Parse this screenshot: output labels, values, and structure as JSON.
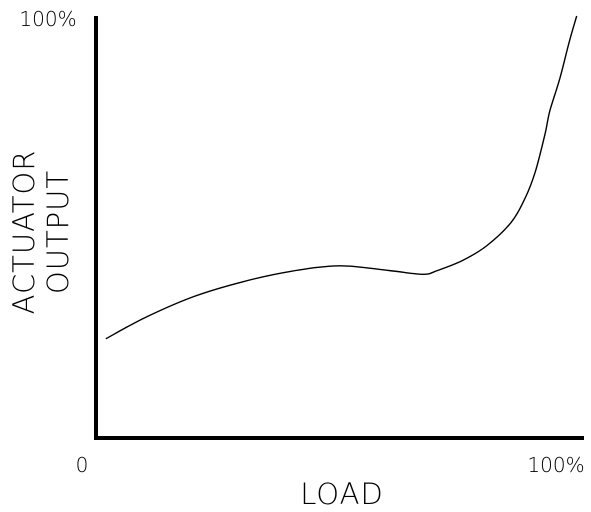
{
  "chart_data": {
    "type": "line",
    "title": "",
    "xlabel": "LOAD",
    "ylabel_lines": [
      "ACTUATOR",
      "OUTPUT"
    ],
    "x_ticks": [
      {
        "value": 0,
        "label": "0"
      },
      {
        "value": 100,
        "label": "100%"
      }
    ],
    "y_ticks": [
      {
        "value": 100,
        "label": "100%"
      }
    ],
    "xlim": [
      0,
      100
    ],
    "ylim": [
      0,
      100
    ],
    "grid": false,
    "series": [
      {
        "x": [
          2,
          10,
          20,
          30,
          40,
          50,
          60,
          67,
          70,
          75,
          80,
          85,
          88,
          90,
          92,
          93,
          95,
          97,
          98.5
        ],
        "y": [
          23.5,
          28.5,
          33.5,
          37.0,
          39.5,
          40.8,
          39.7,
          38.8,
          39.7,
          42.0,
          45.5,
          51.0,
          57.0,
          63.0,
          72.0,
          77.5,
          85.0,
          94.0,
          100.0
        ]
      }
    ]
  }
}
